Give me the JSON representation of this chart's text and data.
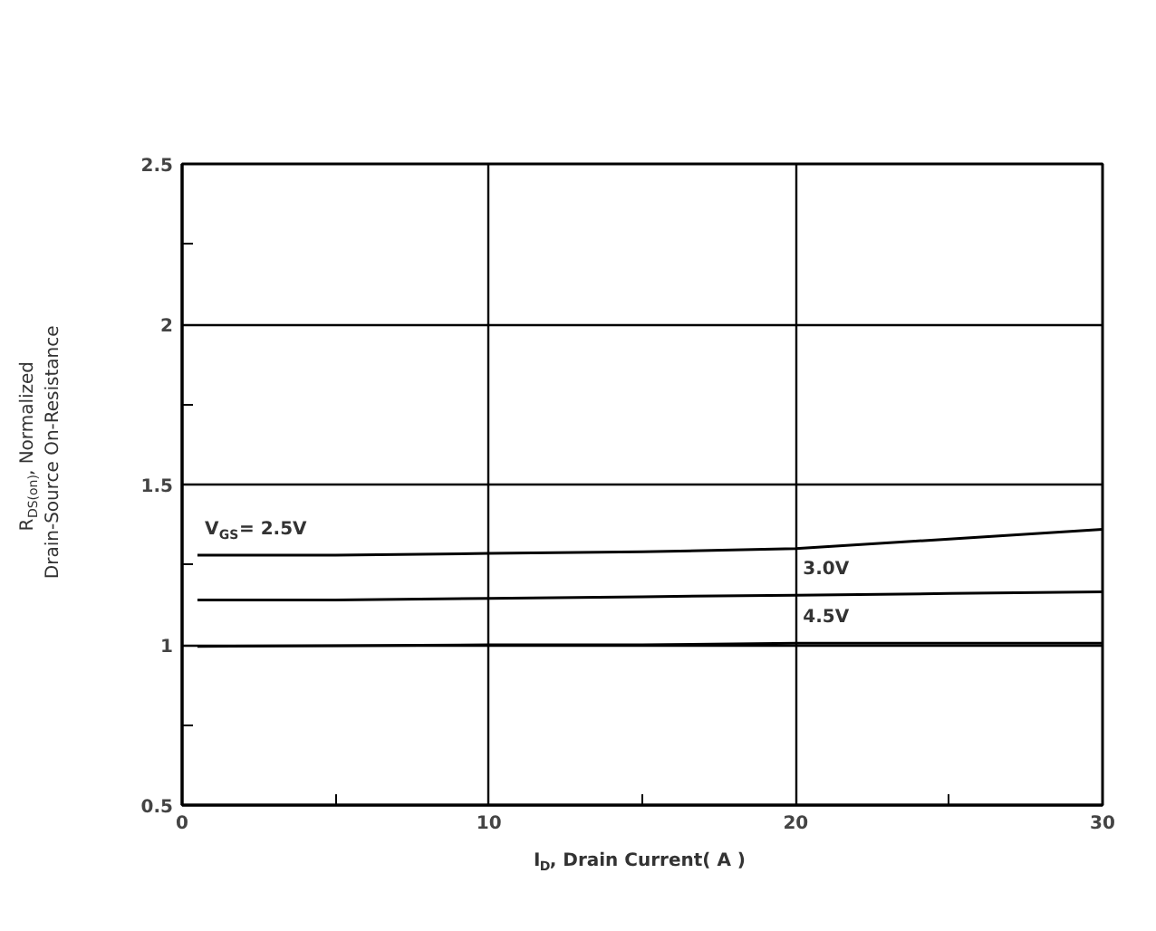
{
  "chart_data": {
    "type": "line",
    "xlabel": "I$_{D}$, Drain Current( A )",
    "ylabel": "R$_{DS(on)}$, Normalized\nDrain-Source On-Resistance",
    "x": [
      0.5,
      5,
      10,
      15,
      20,
      25,
      30
    ],
    "series": [
      {
        "color": "#000000",
        "values": [
          1.28,
          1.28,
          1.285,
          1.29,
          1.3,
          1.33,
          1.36
        ]
      },
      {
        "color": "#000000",
        "values": [
          1.14,
          1.14,
          1.145,
          1.15,
          1.155,
          1.16,
          1.165
        ]
      },
      {
        "color": "#000000",
        "values": [
          0.995,
          0.997,
          1.0,
          1.0,
          1.005,
          1.005,
          1.005
        ]
      }
    ],
    "annotations": [
      "V$_{GS}$= 2.5V",
      "3.0V",
      "4.5V"
    ],
    "xlim": [
      0,
      30
    ],
    "ylim": [
      0.5,
      2.5
    ],
    "xticks": [
      0,
      {
        "value": 5,
        "label": null
      },
      10,
      {
        "value": 15,
        "label": null
      },
      20,
      {
        "value": 25,
        "label": null
      },
      30
    ],
    "yticks": [
      0.5,
      {
        "value": 0.75,
        "label": null
      },
      1,
      {
        "value": 1.25,
        "label": null
      },
      1.5,
      {
        "value": 1.75,
        "label": null
      },
      2,
      {
        "value": 2.25,
        "label": null
      },
      2.5
    ],
    "grid": true,
    "line_style": "solid",
    "marker": "none"
  }
}
